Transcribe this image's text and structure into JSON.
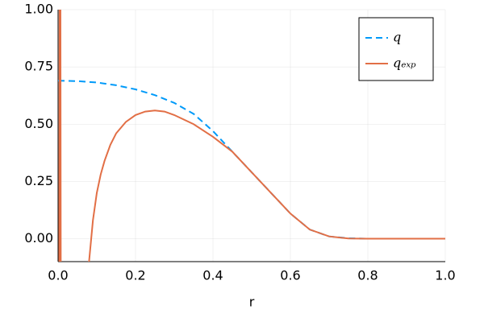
{
  "chart_data": {
    "type": "line",
    "xlabel": "r",
    "xlim": [
      0,
      1
    ],
    "xticks": [
      {
        "value": 0,
        "label": "0.0"
      },
      0.2,
      0.4,
      0.6,
      0.8,
      {
        "value": 1,
        "label": "1.0"
      }
    ],
    "ylim": [
      -0.1,
      1
    ],
    "yticks": [
      {
        "value": 0,
        "label": "0.00"
      },
      0.25,
      {
        "value": 0.5,
        "label": "0.50"
      },
      0.75,
      {
        "value": 1,
        "label": "1.00"
      }
    ],
    "grid": true,
    "legend": "top-right",
    "series": [
      {
        "name": "q",
        "color": "#009af9",
        "dashed": true,
        "x": [
          0,
          0.05,
          0.1,
          0.15,
          0.2,
          0.25,
          0.3,
          0.35,
          0.4,
          0.45,
          0.5,
          0.55,
          0.6,
          0.65,
          0.7,
          0.75,
          0.8,
          0.9,
          1.0
        ],
        "values": [
          0.69,
          0.688,
          0.682,
          0.67,
          0.652,
          0.627,
          0.593,
          0.545,
          0.47,
          0.38,
          0.29,
          0.2,
          0.11,
          0.04,
          0.01,
          0.002,
          0,
          0,
          0
        ]
      },
      {
        "name": "qₑₓₚ",
        "color": "#e26f46",
        "dashed": false,
        "x": [
          0.003,
          0.004,
          0.006,
          0.007,
          0.08,
          0.09,
          0.1,
          0.11,
          0.12,
          0.135,
          0.15,
          0.175,
          0.2,
          0.225,
          0.25,
          0.275,
          0.3,
          0.35,
          0.4,
          0.45,
          0.5,
          0.55,
          0.6,
          0.65,
          0.7,
          0.75,
          0.8,
          0.9,
          1.0
        ],
        "values": [
          -0.2,
          1.2,
          1.2,
          -0.2,
          -0.1,
          0.08,
          0.2,
          0.28,
          0.34,
          0.41,
          0.46,
          0.51,
          0.54,
          0.555,
          0.56,
          0.555,
          0.54,
          0.5,
          0.445,
          0.38,
          0.29,
          0.2,
          0.11,
          0.04,
          0.01,
          0.001,
          0,
          0,
          0
        ]
      }
    ]
  }
}
